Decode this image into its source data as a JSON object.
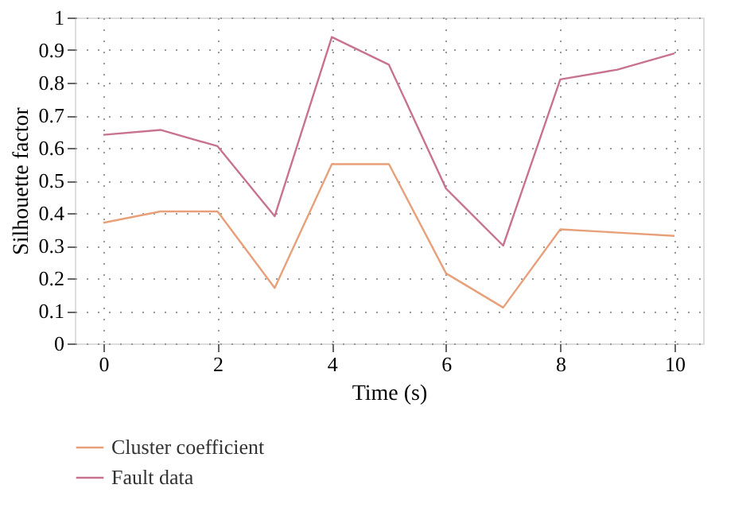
{
  "chart_data": {
    "type": "line",
    "xlabel": "Time (s)",
    "ylabel": "Silhouette factor",
    "x": [
      0,
      1,
      2,
      3,
      4,
      5,
      6,
      7,
      8,
      9,
      10
    ],
    "series": [
      {
        "name": "Cluster coefficient",
        "color": "#e8a07a",
        "values": [
          0.37,
          0.405,
          0.405,
          0.17,
          0.55,
          0.55,
          0.215,
          0.11,
          0.35,
          0.34,
          0.33
        ]
      },
      {
        "name": "Fault data",
        "color": "#c8738e",
        "values": [
          0.64,
          0.655,
          0.605,
          0.39,
          0.94,
          0.855,
          0.475,
          0.3,
          0.81,
          0.84,
          0.89
        ]
      }
    ],
    "xlim": [
      -0.5,
      10.5
    ],
    "xticks": [
      0,
      2,
      4,
      6,
      8,
      10
    ],
    "ylim": [
      0,
      1
    ],
    "yticks": [
      0,
      0.1,
      0.2,
      0.3,
      0.4,
      0.5,
      0.6,
      0.7,
      0.8,
      0.9,
      1
    ],
    "grid": true,
    "legend": "bottom left",
    "marker": "none",
    "line_style": "solid"
  }
}
